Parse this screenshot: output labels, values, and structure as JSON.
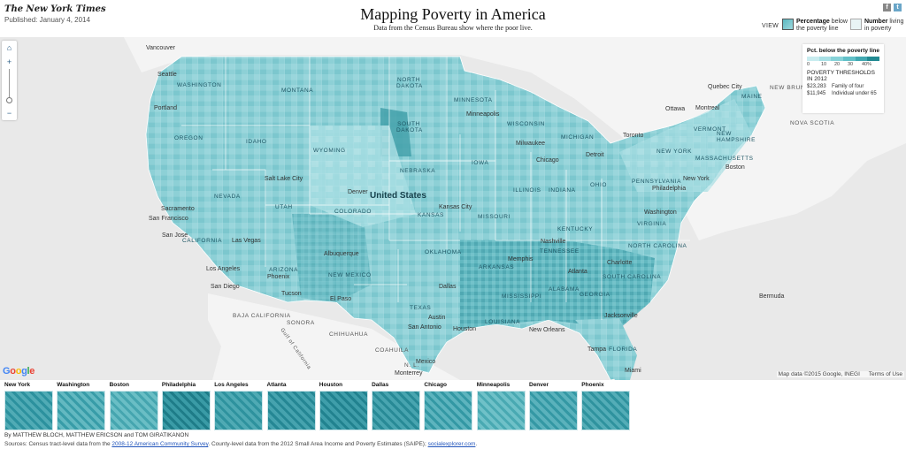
{
  "header": {
    "masthead": "The New York Times",
    "published": "Published: January 4, 2014",
    "title": "Mapping Poverty in America",
    "subtitle": "Data from the Census Bureau show where the poor live.",
    "social": [
      {
        "icon": "facebook-icon",
        "glyph": "f"
      },
      {
        "icon": "twitter-icon",
        "glyph": "t"
      }
    ],
    "view_label": "VIEW",
    "view_options": [
      {
        "bold": "Percentage",
        "rest1": " below",
        "rest2": "the poverty line",
        "selected": true
      },
      {
        "bold": "Number",
        "rest1": " living",
        "rest2": "in poverty",
        "selected": false
      }
    ]
  },
  "map": {
    "country": "United States",
    "states": [
      "WASHINGTON",
      "MONTANA",
      "NORTH DAKOTA",
      "MINNESOTA",
      "OREGON",
      "IDAHO",
      "SOUTH DAKOTA",
      "WISCONSIN",
      "MICHIGAN",
      "WYOMING",
      "NEBRASKA",
      "IOWA",
      "NEVADA",
      "UTAH",
      "COLORADO",
      "KANSAS",
      "ILLINOIS",
      "INDIANA",
      "OHIO",
      "PENNSYLVANIA",
      "NEW YORK",
      "VERMONT",
      "NEW HAMPSHIRE",
      "MASSACHUSETTS",
      "CALIFORNIA",
      "ARIZONA",
      "NEW MEXICO",
      "OKLAHOMA",
      "MISSOURI",
      "KENTUCKY",
      "VIRGINIA",
      "TENNESSEE",
      "NORTH CAROLINA",
      "ARKANSAS",
      "SOUTH CAROLINA",
      "MISSISSIPPI",
      "ALABAMA",
      "GEORGIA",
      "TEXAS",
      "LOUISIANA",
      "FLORIDA",
      "MAINE"
    ],
    "cities": [
      "Vancouver",
      "Seattle",
      "Portland",
      "Salt Lake City",
      "Denver",
      "Sacramento",
      "San Francisco",
      "San Jose",
      "Las Vegas",
      "Los Angeles",
      "San Diego",
      "Phoenix",
      "Tucson",
      "Albuquerque",
      "El Paso",
      "Dallas",
      "Austin",
      "Houston",
      "San Antonio",
      "Kansas City",
      "Minneapolis",
      "Milwaukee",
      "Chicago",
      "Detroit",
      "Toronto",
      "Ottawa",
      "Montreal",
      "Quebec City",
      "Boston",
      "New York",
      "Philadelphia",
      "Washington",
      "Nashville",
      "Memphis",
      "Atlanta",
      "Charlotte",
      "New Orleans",
      "Jacksonville",
      "Tampa",
      "Miami",
      "Monterrey",
      "Mexico",
      "Bermuda"
    ],
    "foreign": [
      "NEW BRUNSWICK",
      "NOVA SCOTIA",
      "BAJA CALIFORNIA",
      "SONORA",
      "CHIHUAHUA",
      "COAHUILA",
      "N. L.",
      "Gulf of California"
    ],
    "google_letters": [
      "G",
      "o",
      "o",
      "g",
      "l",
      "e"
    ],
    "attribution": "Map data ©2015 Google, INEGI",
    "terms": "Terms of Use",
    "zoom_in": "+",
    "zoom_out": "−"
  },
  "legend": {
    "title": "Pct. below the poverty line",
    "colors": [
      "#c8ecef",
      "#a8e0e5",
      "#86d2d8",
      "#62c0c8",
      "#41a8b1",
      "#228a92"
    ],
    "ticks": [
      "0",
      "10",
      "20",
      "30",
      "40%"
    ],
    "thresholds_title": "POVERTY THRESHOLDS IN 2012",
    "thresholds": [
      {
        "amount": "$23,283",
        "label": "Family of four"
      },
      {
        "amount": "$11,945",
        "label": "Individual under 65"
      }
    ]
  },
  "city_thumbs": [
    {
      "name": "New York",
      "base": "#8fd1d7",
      "accent": "#4fb1bb"
    },
    {
      "name": "Washington",
      "base": "#9fd9de",
      "accent": "#5ab8c1"
    },
    {
      "name": "Boston",
      "base": "#a4dce0",
      "accent": "#6bbfc7"
    },
    {
      "name": "Philadelphia",
      "base": "#7ac7ce",
      "accent": "#3f9fa9"
    },
    {
      "name": "Los Angeles",
      "base": "#8ed0d6",
      "accent": "#53b3bc"
    },
    {
      "name": "Atlanta",
      "base": "#86ccd3",
      "accent": "#47a9b3"
    },
    {
      "name": "Houston",
      "base": "#7fc9d0",
      "accent": "#43a5af"
    },
    {
      "name": "Dallas",
      "base": "#88cdd4",
      "accent": "#4aabb4"
    },
    {
      "name": "Chicago",
      "base": "#9ad6dc",
      "accent": "#55b5be"
    },
    {
      "name": "Minneapolis",
      "base": "#a8dee2",
      "accent": "#6fc2c9"
    },
    {
      "name": "Denver",
      "base": "#98d5db",
      "accent": "#58b6bf"
    },
    {
      "name": "Phoenix",
      "base": "#92d2d8",
      "accent": "#52b2bb"
    }
  ],
  "footer": {
    "byline": "By MATTHEW BLOCH, MATTHEW ERICSON and TOM GIRATIKANON",
    "sources_prefix": "Sources: Census tract-level data from the ",
    "sources_link1": "2008-12 American Community Survey",
    "sources_middle": ". County-level data from the 2012 Small Area Income and Poverty Estimates (SAIPE); ",
    "sources_link2": "socialexplorer.com",
    "sources_suffix": "."
  }
}
